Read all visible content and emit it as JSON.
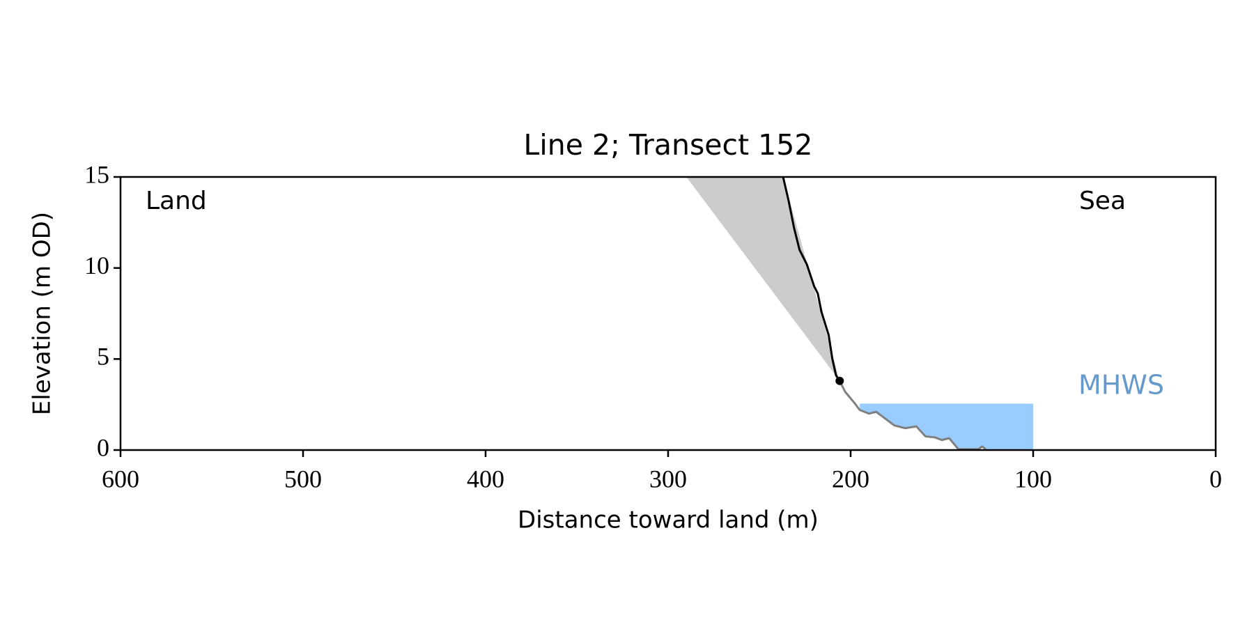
{
  "chart_data": {
    "type": "line",
    "title": "Line 2; Transect 152",
    "xlabel": "Distance toward land (m)",
    "ylabel": "Elevation (m OD)",
    "xlim": [
      600,
      0
    ],
    "ylim": [
      0,
      15
    ],
    "xticks": [
      600,
      500,
      400,
      300,
      200,
      100,
      0
    ],
    "yticks": [
      0,
      5,
      10,
      15
    ],
    "series": [
      {
        "color": "#000000",
        "x": [
          237,
          234,
          231,
          228,
          224,
          220,
          218,
          216,
          212,
          210,
          208,
          206
        ],
        "values": [
          15,
          13.7,
          12.2,
          11.0,
          10.2,
          9.0,
          8.6,
          7.6,
          6.3,
          5.0,
          4.1,
          3.8
        ]
      },
      {
        "color": "#808080",
        "x": [
          206,
          203,
          198,
          195,
          190,
          186,
          182,
          176,
          170,
          164,
          159,
          154,
          150,
          146,
          141,
          130,
          128,
          126
        ],
        "values": [
          3.8,
          3.2,
          2.6,
          2.2,
          2.0,
          2.1,
          1.8,
          1.35,
          1.2,
          1.3,
          0.75,
          0.7,
          0.55,
          0.65,
          0.05,
          0.05,
          0.2,
          0.05
        ]
      }
    ],
    "shaded_wedge": {
      "color": "#cccccc",
      "x": [
        290,
        237,
        206
      ],
      "values": [
        15,
        15,
        3.8
      ]
    },
    "point": {
      "color": "#000000",
      "x": 206,
      "value": 3.8
    },
    "mhws": {
      "label": "MHWS",
      "color": "#99ccff",
      "label_color": "#6699cc",
      "level": 2.55,
      "x": [
        195,
        100
      ]
    },
    "annotations": [
      "Land",
      "Sea"
    ]
  }
}
